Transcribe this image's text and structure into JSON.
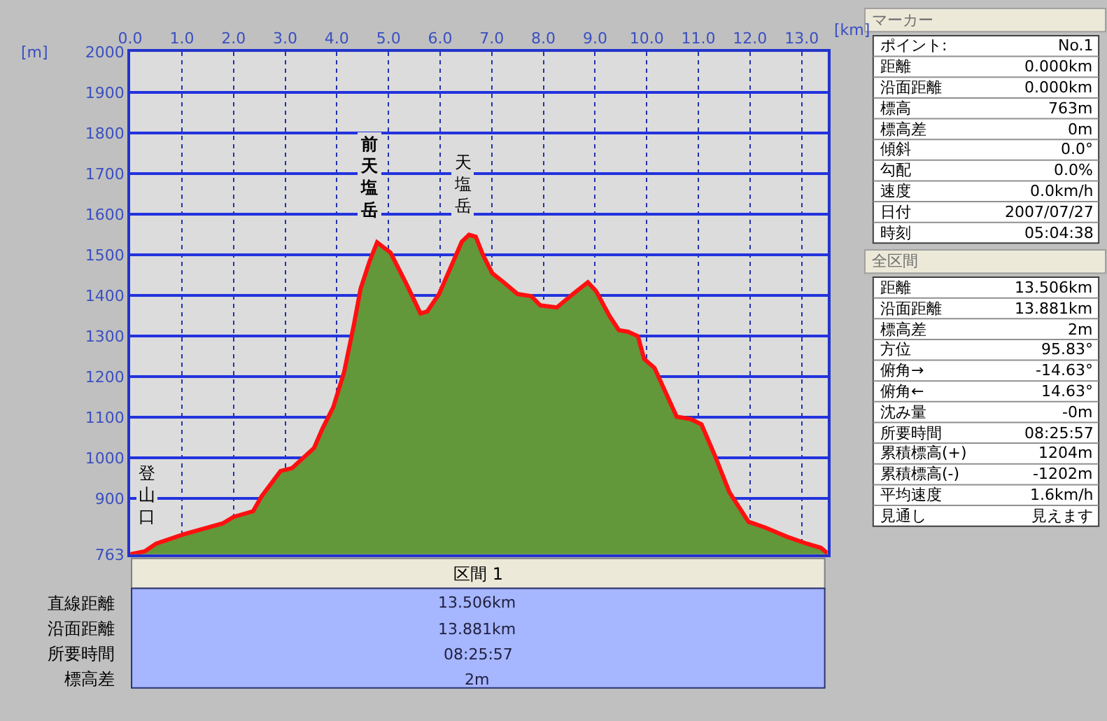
{
  "chart_data": [
    {
      "type": "area",
      "xlabel": "[km]",
      "ylabel": "[m]",
      "grid": true,
      "legend": false,
      "marker": "none",
      "line_style": "solid",
      "x": [
        0,
        0.28,
        0.5,
        1.03,
        1.79,
        2.0,
        2.38,
        2.54,
        2.91,
        3.13,
        3.56,
        3.72,
        3.93,
        4.14,
        4.33,
        4.46,
        4.63,
        4.78,
        5.04,
        5.35,
        5.62,
        5.75,
        5.98,
        6.25,
        6.42,
        6.56,
        6.69,
        6.83,
        7.01,
        7.23,
        7.5,
        7.76,
        7.94,
        8.26,
        8.57,
        8.86,
        9.02,
        9.28,
        9.46,
        9.64,
        9.83,
        9.95,
        10.15,
        10.58,
        10.85,
        11.06,
        11.33,
        11.6,
        11.97,
        12.29,
        12.72,
        13.1,
        13.37,
        13.5
      ],
      "series": [
        {
          "type": "area",
          "color": "#62983a",
          "values": [
            763,
            770,
            789,
            812,
            839,
            855,
            869,
            905,
            968,
            975,
            1025,
            1072,
            1125,
            1211,
            1328,
            1417,
            1483,
            1531,
            1506,
            1428,
            1356,
            1361,
            1404,
            1483,
            1533,
            1550,
            1545,
            1500,
            1455,
            1433,
            1404,
            1399,
            1376,
            1371,
            1404,
            1433,
            1411,
            1350,
            1315,
            1311,
            1300,
            1244,
            1222,
            1102,
            1096,
            1083,
            1003,
            916,
            843,
            829,
            806,
            789,
            779,
            765
          ]
        },
        {
          "type": "line",
          "color": "#ff1010",
          "values": [
            763,
            770,
            789,
            812,
            839,
            855,
            869,
            905,
            968,
            975,
            1025,
            1072,
            1125,
            1211,
            1328,
            1417,
            1483,
            1531,
            1506,
            1428,
            1356,
            1361,
            1404,
            1483,
            1533,
            1550,
            1545,
            1500,
            1455,
            1433,
            1404,
            1399,
            1376,
            1371,
            1404,
            1433,
            1411,
            1350,
            1315,
            1311,
            1300,
            1244,
            1222,
            1102,
            1096,
            1083,
            1003,
            916,
            843,
            829,
            806,
            789,
            779,
            765
          ]
        }
      ],
      "xlim": [
        0,
        13.5
      ],
      "ylim": [
        763,
        2000
      ],
      "xticks": [
        {
          "value": 0,
          "label": "0.0"
        },
        {
          "value": 1,
          "label": "1.0"
        },
        {
          "value": 2,
          "label": "2.0"
        },
        {
          "value": 3,
          "label": "3.0"
        },
        {
          "value": 4,
          "label": "4.0"
        },
        {
          "value": 5,
          "label": "5.0"
        },
        {
          "value": 6,
          "label": "6.0"
        },
        {
          "value": 7,
          "label": "7.0"
        },
        {
          "value": 8,
          "label": "8.0"
        },
        {
          "value": 9,
          "label": "9.0"
        },
        {
          "value": 10,
          "label": "10.0"
        },
        {
          "value": 11,
          "label": "11.0"
        },
        {
          "value": 12,
          "label": "12.0"
        },
        {
          "value": 13,
          "label": "13.0"
        }
      ],
      "yticks": [
        763,
        900,
        1000,
        1100,
        1200,
        1300,
        1400,
        1500,
        1600,
        1700,
        1800,
        1900,
        2000
      ],
      "annotations": [
        {
          "text": "前天塩岳",
          "x": 4.78,
          "y": 1531
        },
        {
          "text": "天塩岳",
          "x": 6.56,
          "y": 1550
        },
        {
          "text": "登山口",
          "x": 0,
          "y": 763
        }
      ]
    },
    {
      "type": "other",
      "title": "マーカー",
      "annotations": [
        "ポイント:",
        "No.1",
        "距離",
        "0.000km",
        "沿面距離",
        "0.000km",
        "標高",
        "763m",
        "標高差",
        "0m",
        "傾斜",
        "0.0°",
        "勾配",
        "0.0%",
        "速度",
        "0.0km/h",
        "日付",
        "2007/07/27",
        "時刻",
        "05:04:38"
      ]
    },
    {
      "type": "other",
      "title": "全区間",
      "annotations": [
        "距離",
        "13.506km",
        "沿面距離",
        "13.881km",
        "標高差",
        "2m",
        "方位",
        "95.83°",
        "俯角→",
        "-14.63°",
        "俯角←",
        "14.63°",
        "沈み量",
        "-0m",
        "所要時間",
        "08:25:57",
        "累積標高(+)",
        "1204m",
        "累積標高(-)",
        "-1202m",
        "平均速度",
        "1.6km/h",
        "見通し",
        "見えます"
      ]
    },
    {
      "type": "other",
      "title": "区間 1",
      "annotations": [
        "直線距離",
        "13.506km",
        "沿面距離",
        "13.881km",
        "所要時間",
        "08:25:57",
        "標高差",
        "2m"
      ]
    }
  ]
}
